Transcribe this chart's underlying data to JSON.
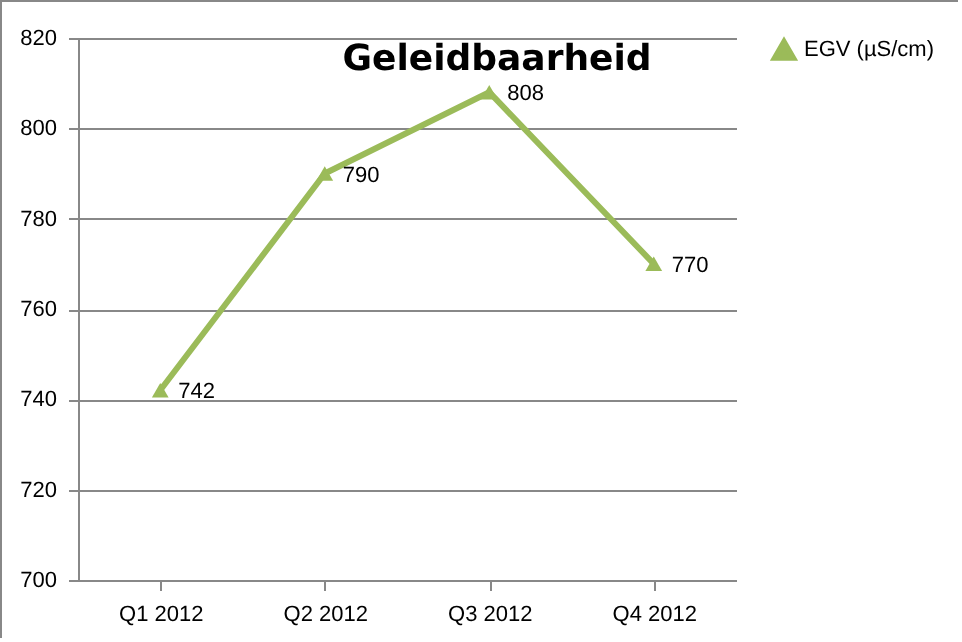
{
  "chart_data": {
    "type": "line",
    "title": "Geleidbaarheid",
    "categories": [
      "Q1 2012",
      "Q2 2012",
      "Q3 2012",
      "Q4 2012"
    ],
    "series": [
      {
        "name": "EGV (µS/cm)",
        "color": "#9bbb59",
        "values": [
          742,
          790,
          808,
          770
        ]
      }
    ],
    "ylim": [
      700,
      820
    ],
    "yticks": [
      700,
      720,
      740,
      760,
      780,
      800,
      820
    ],
    "grid": "y",
    "legend": "right",
    "marker": "triangle",
    "line_style": "solid",
    "data_labels": true
  }
}
